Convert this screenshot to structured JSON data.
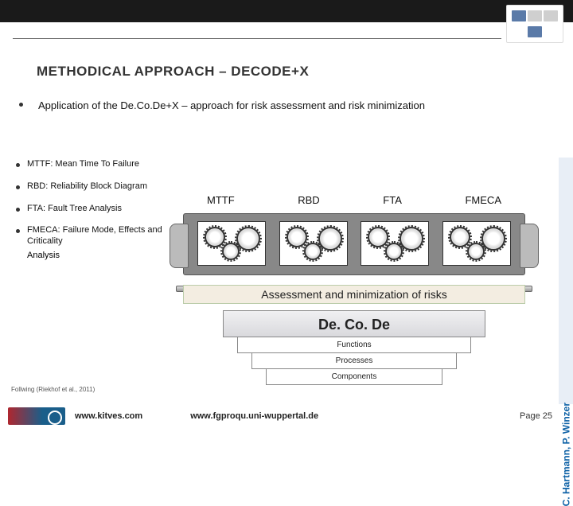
{
  "title": {
    "text": "METHODICAL APPROACH – DECODE+X",
    "fontsize": 17
  },
  "intro": {
    "text": "Application of the De.Co.De+X – approach for risk assessment and risk minimization",
    "fontsize": 13
  },
  "side_items": [
    "MTTF: Mean Time To Failure",
    "RBD: Reliability Block Diagram",
    "FTA: Fault Tree Analysis",
    "FMECA: Failure Mode, Effects and Criticality"
  ],
  "side_trailing": "Analysis",
  "side_fontsize": 11,
  "diagram": {
    "method_labels": [
      "MTTF",
      "RBD",
      "FTA",
      "FMECA"
    ],
    "label_fontsize": 13,
    "assessment_text": "Assessment and minimization of risks",
    "assessment_fontsize": 14,
    "decode_title": "De. Co. De",
    "layers": [
      "Functions",
      "Processes",
      "Components"
    ],
    "layer_fontsize": 10,
    "colors": {
      "device_body": "#888888",
      "device_border": "#555555",
      "handle": "#bbbbbb",
      "gearbox_bg": "#ffffff",
      "gearbox_border": "#333333",
      "assess_bg": "#f3ede1",
      "decode_grad_from": "#f0f0f2",
      "decode_grad_to": "#d9d9dd",
      "layer_bg": "#ffffff",
      "layer_border": "#888888"
    }
  },
  "citation": {
    "text": "Follwing (Riekhof  et al., 2011)",
    "fontsize": 8
  },
  "footer": {
    "url1": "www.kitves.com",
    "url2": "www.fgproqu.uni-wuppertal.de",
    "page": "Page 25",
    "fontsize": 11,
    "logo_colors": [
      "#b0272f",
      "#1a5e8a"
    ]
  },
  "side_credit": {
    "text": "C. Hartmann, P. Winzer",
    "fontsize": 12,
    "color": "#0a5fa5"
  },
  "header": {
    "bar_color": "#1a1a1a",
    "rule_color": "#666666"
  }
}
